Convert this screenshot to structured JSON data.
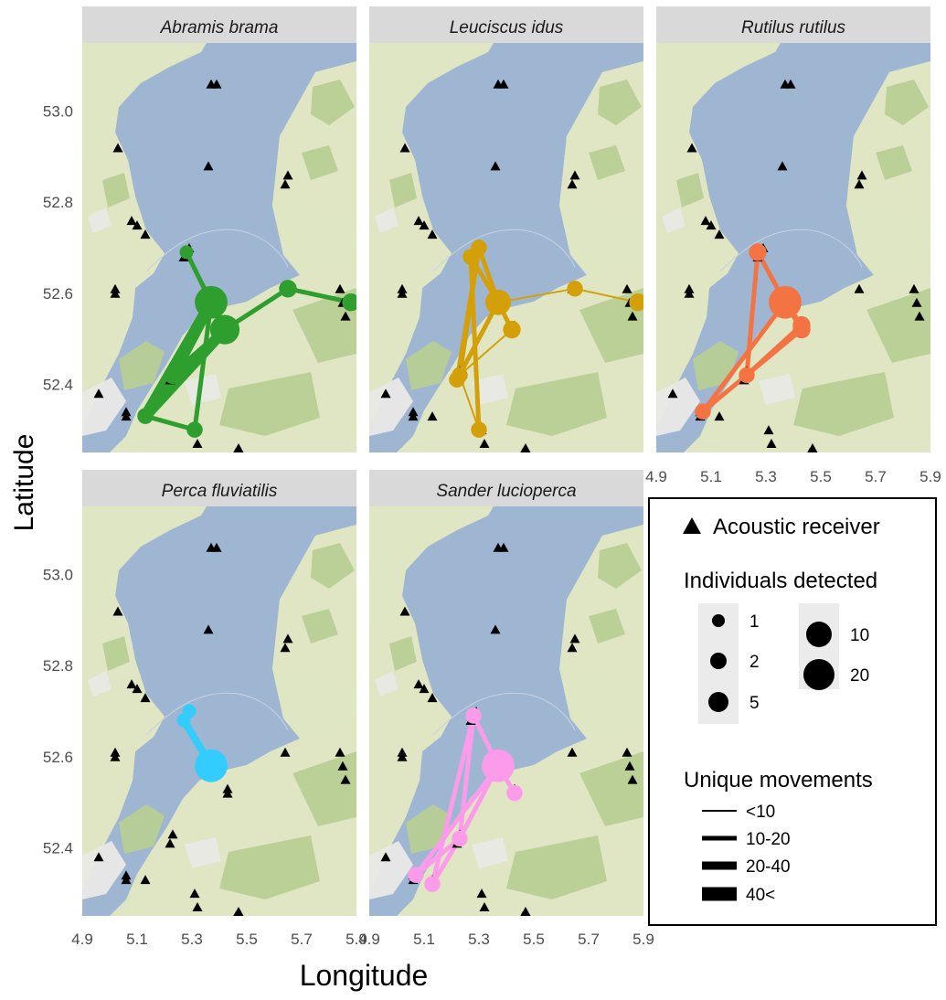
{
  "axes": {
    "xlabel": "Longitude",
    "ylabel": "Latitude",
    "x_ticks": [
      "4.9",
      "5.1",
      "5.3",
      "5.5",
      "5.7",
      "5.9"
    ],
    "y_ticks": [
      "53.0",
      "52.8",
      "52.6",
      "52.4"
    ]
  },
  "colors": {
    "water": "#9fb6d3",
    "land": "#dfe6c3",
    "forest": "#b7cf95",
    "urban": "#e9e9e6",
    "strip": "#d9d9d9",
    "receiver": "#000000"
  },
  "legend": {
    "receiver_label": "Acoustic receiver",
    "size_title": "Individuals detected",
    "size_labels": [
      "1",
      "2",
      "5",
      "10",
      "20"
    ],
    "width_title": "Unique movements",
    "width_labels": [
      "<10",
      "10-20",
      "20-40",
      "40<"
    ]
  },
  "chart_data": {
    "type": "map",
    "xlim": [
      4.9,
      5.9
    ],
    "ylim": [
      52.25,
      53.15
    ],
    "receivers": [
      [
        5.37,
        53.06
      ],
      [
        5.39,
        53.06
      ],
      [
        5.03,
        52.92
      ],
      [
        5.36,
        52.88
      ],
      [
        5.65,
        52.86
      ],
      [
        5.64,
        52.84
      ],
      [
        5.08,
        52.76
      ],
      [
        5.1,
        52.75
      ],
      [
        5.13,
        52.73
      ],
      [
        5.29,
        52.7
      ],
      [
        5.27,
        52.68
      ],
      [
        5.02,
        52.6
      ],
      [
        5.02,
        52.61
      ],
      [
        5.64,
        52.61
      ],
      [
        5.84,
        52.61
      ],
      [
        5.85,
        52.58
      ],
      [
        5.86,
        52.55
      ],
      [
        5.43,
        52.53
      ],
      [
        5.43,
        52.52
      ],
      [
        5.23,
        52.43
      ],
      [
        5.22,
        52.41
      ],
      [
        4.96,
        52.38
      ],
      [
        5.06,
        52.34
      ],
      [
        5.06,
        52.33
      ],
      [
        5.13,
        52.33
      ],
      [
        5.31,
        52.3
      ],
      [
        5.32,
        52.27
      ],
      [
        5.47,
        52.26
      ],
      [
        5.46,
        52.25
      ]
    ],
    "species": [
      {
        "name": "Abramis brama",
        "color": "#2e9e2e",
        "locations": [
          {
            "lon": 5.28,
            "lat": 52.69,
            "n": 1
          },
          {
            "lon": 5.37,
            "lat": 52.58,
            "n": 20
          },
          {
            "lon": 5.42,
            "lat": 52.52,
            "n": 15
          },
          {
            "lon": 5.65,
            "lat": 52.61,
            "n": 3
          },
          {
            "lon": 5.88,
            "lat": 52.58,
            "n": 3
          },
          {
            "lon": 5.23,
            "lat": 52.42,
            "n": 3
          },
          {
            "lon": 5.13,
            "lat": 52.33,
            "n": 2
          },
          {
            "lon": 5.31,
            "lat": 52.3,
            "n": 2
          }
        ],
        "moves": [
          {
            "from": 0,
            "to": 1,
            "class": "10-20"
          },
          {
            "from": 1,
            "to": 2,
            "class": "20-40"
          },
          {
            "from": 2,
            "to": 3,
            "class": "10-20"
          },
          {
            "from": 3,
            "to": 4,
            "class": "10-20"
          },
          {
            "from": 1,
            "to": 5,
            "class": "40<"
          },
          {
            "from": 1,
            "to": 6,
            "class": "40<"
          },
          {
            "from": 2,
            "to": 5,
            "class": "20-40"
          },
          {
            "from": 2,
            "to": 6,
            "class": "40<"
          },
          {
            "from": 5,
            "to": 6,
            "class": "20-40"
          },
          {
            "from": 6,
            "to": 7,
            "class": "10-20"
          },
          {
            "from": 7,
            "to": 1,
            "class": "10-20"
          }
        ]
      },
      {
        "name": "Leuciscus idus",
        "color": "#d4a00a",
        "locations": [
          {
            "lon": 5.3,
            "lat": 52.7,
            "n": 2
          },
          {
            "lon": 5.27,
            "lat": 52.68,
            "n": 2
          },
          {
            "lon": 5.37,
            "lat": 52.58,
            "n": 10
          },
          {
            "lon": 5.42,
            "lat": 52.52,
            "n": 3
          },
          {
            "lon": 5.65,
            "lat": 52.61,
            "n": 2
          },
          {
            "lon": 5.88,
            "lat": 52.58,
            "n": 3
          },
          {
            "lon": 5.23,
            "lat": 52.42,
            "n": 2
          },
          {
            "lon": 5.22,
            "lat": 52.41,
            "n": 2
          },
          {
            "lon": 5.3,
            "lat": 52.3,
            "n": 2
          }
        ],
        "moves": [
          {
            "from": 0,
            "to": 2,
            "class": "10-20"
          },
          {
            "from": 1,
            "to": 2,
            "class": "10-20"
          },
          {
            "from": 0,
            "to": 6,
            "class": "10-20"
          },
          {
            "from": 1,
            "to": 8,
            "class": "10-20"
          },
          {
            "from": 2,
            "to": 3,
            "class": "10-20"
          },
          {
            "from": 2,
            "to": 4,
            "class": "<10"
          },
          {
            "from": 4,
            "to": 5,
            "class": "<10"
          },
          {
            "from": 2,
            "to": 7,
            "class": "10-20"
          },
          {
            "from": 3,
            "to": 6,
            "class": "<10"
          },
          {
            "from": 6,
            "to": 8,
            "class": "<10"
          },
          {
            "from": 7,
            "to": 0,
            "class": "10-20"
          }
        ]
      },
      {
        "name": "Rutilus rutilus",
        "color": "#f47342",
        "locations": [
          {
            "lon": 5.27,
            "lat": 52.69,
            "n": 3
          },
          {
            "lon": 5.37,
            "lat": 52.58,
            "n": 20
          },
          {
            "lon": 5.43,
            "lat": 52.53,
            "n": 3
          },
          {
            "lon": 5.43,
            "lat": 52.52,
            "n": 3
          },
          {
            "lon": 5.23,
            "lat": 52.42,
            "n": 2
          },
          {
            "lon": 5.07,
            "lat": 52.34,
            "n": 2
          }
        ],
        "moves": [
          {
            "from": 0,
            "to": 1,
            "class": "10-20"
          },
          {
            "from": 1,
            "to": 2,
            "class": "10-20"
          },
          {
            "from": 1,
            "to": 3,
            "class": "10-20"
          },
          {
            "from": 0,
            "to": 4,
            "class": "10-20"
          },
          {
            "from": 1,
            "to": 5,
            "class": "10-20"
          },
          {
            "from": 4,
            "to": 5,
            "class": "10-20"
          },
          {
            "from": 3,
            "to": 4,
            "class": "10-20"
          },
          {
            "from": 2,
            "to": 4,
            "class": "10-20"
          }
        ]
      },
      {
        "name": "Perca fluviatilis",
        "color": "#33ccff",
        "locations": [
          {
            "lon": 5.29,
            "lat": 52.7,
            "n": 1
          },
          {
            "lon": 5.27,
            "lat": 52.68,
            "n": 1
          },
          {
            "lon": 5.37,
            "lat": 52.58,
            "n": 20
          }
        ],
        "moves": [
          {
            "from": 0,
            "to": 1,
            "class": "10-20"
          },
          {
            "from": 1,
            "to": 2,
            "class": "20-40"
          }
        ]
      },
      {
        "name": "Sander lucioperca",
        "color": "#fb9be9",
        "locations": [
          {
            "lon": 5.28,
            "lat": 52.69,
            "n": 2
          },
          {
            "lon": 5.37,
            "lat": 52.58,
            "n": 20
          },
          {
            "lon": 5.43,
            "lat": 52.52,
            "n": 2
          },
          {
            "lon": 5.23,
            "lat": 52.42,
            "n": 2
          },
          {
            "lon": 5.07,
            "lat": 52.34,
            "n": 2
          },
          {
            "lon": 5.13,
            "lat": 52.32,
            "n": 2
          }
        ],
        "moves": [
          {
            "from": 0,
            "to": 1,
            "class": "10-20"
          },
          {
            "from": 1,
            "to": 2,
            "class": "10-20"
          },
          {
            "from": 0,
            "to": 3,
            "class": "10-20"
          },
          {
            "from": 0,
            "to": 5,
            "class": "10-20"
          },
          {
            "from": 1,
            "to": 3,
            "class": "10-20"
          },
          {
            "from": 1,
            "to": 4,
            "class": "10-20"
          },
          {
            "from": 3,
            "to": 4,
            "class": "10-20"
          },
          {
            "from": 3,
            "to": 5,
            "class": "10-20"
          }
        ]
      }
    ]
  }
}
